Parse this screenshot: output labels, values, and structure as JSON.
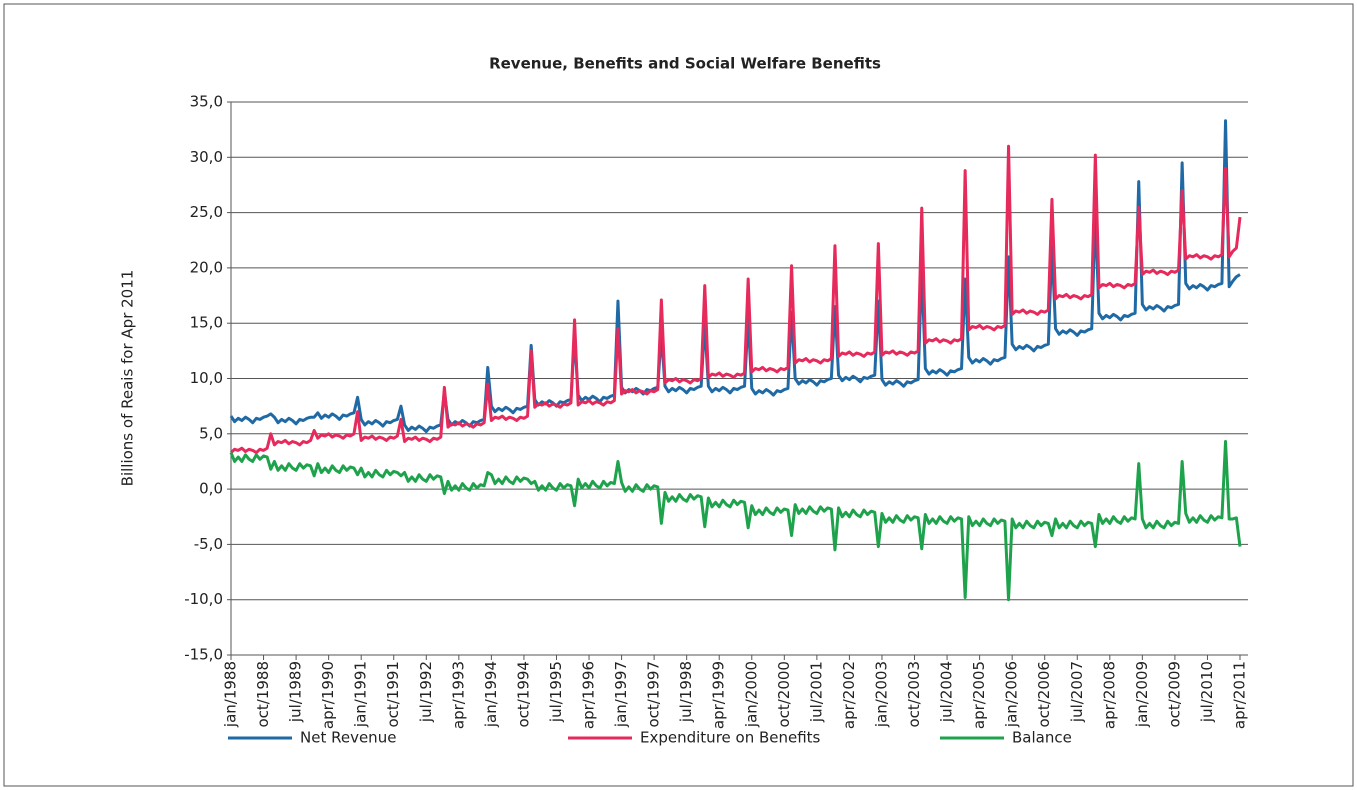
{
  "chart_data": {
    "type": "line",
    "title": "Revenue, Benefits and Social Welfare Benefits",
    "y_label": "Billions of Reais for Apr 2011",
    "ylim": [
      -15,
      35
    ],
    "yticks": [
      {
        "value": -15,
        "label": "-15,0"
      },
      {
        "value": -10,
        "label": "-10,0"
      },
      {
        "value": -5,
        "label": "-5,0"
      },
      {
        "value": 0,
        "label": "0,0"
      },
      {
        "value": 5,
        "label": "5,0"
      },
      {
        "value": 10,
        "label": "10,0"
      },
      {
        "value": 15,
        "label": "15,0"
      },
      {
        "value": 20,
        "label": "20,0"
      },
      {
        "value": 25,
        "label": "25,0"
      },
      {
        "value": 30,
        "label": "30,0"
      },
      {
        "value": 35,
        "label": "35,0"
      }
    ],
    "grid": true,
    "legend": "bottom",
    "categories": [
      "jan/1988",
      null,
      null,
      null,
      null,
      null,
      null,
      null,
      null,
      "oct/1988",
      null,
      null,
      null,
      null,
      null,
      null,
      null,
      null,
      "jul/1989",
      null,
      null,
      null,
      null,
      null,
      null,
      null,
      null,
      "apr/1990",
      null,
      null,
      null,
      null,
      null,
      null,
      null,
      null,
      "jan/1991",
      null,
      null,
      null,
      null,
      null,
      null,
      null,
      null,
      "oct/1991",
      null,
      null,
      null,
      null,
      null,
      null,
      null,
      null,
      "jul/1992",
      null,
      null,
      null,
      null,
      null,
      null,
      null,
      null,
      "apr/1993",
      null,
      null,
      null,
      null,
      null,
      null,
      null,
      null,
      "jan/1994",
      null,
      null,
      null,
      null,
      null,
      null,
      null,
      null,
      "oct/1994",
      null,
      null,
      null,
      null,
      null,
      null,
      null,
      null,
      "jul/1995",
      null,
      null,
      null,
      null,
      null,
      null,
      null,
      null,
      "apr/1996",
      null,
      null,
      null,
      null,
      null,
      null,
      null,
      null,
      "jan/1997",
      null,
      null,
      null,
      null,
      null,
      null,
      null,
      null,
      "oct/1997",
      null,
      null,
      null,
      null,
      null,
      null,
      null,
      null,
      "jul/1998",
      null,
      null,
      null,
      null,
      null,
      null,
      null,
      null,
      "apr/1999",
      null,
      null,
      null,
      null,
      null,
      null,
      null,
      null,
      "jan/2000",
      null,
      null,
      null,
      null,
      null,
      null,
      null,
      null,
      "oct/2000",
      null,
      null,
      null,
      null,
      null,
      null,
      null,
      null,
      "jul/2001",
      null,
      null,
      null,
      null,
      null,
      null,
      null,
      null,
      "apr/2002",
      null,
      null,
      null,
      null,
      null,
      null,
      null,
      null,
      "jan/2003",
      null,
      null,
      null,
      null,
      null,
      null,
      null,
      null,
      "oct/2003",
      null,
      null,
      null,
      null,
      null,
      null,
      null,
      null,
      "jul/2004",
      null,
      null,
      null,
      null,
      null,
      null,
      null,
      null,
      "apr/2005",
      null,
      null,
      null,
      null,
      null,
      null,
      null,
      null,
      "jan/2006",
      null,
      null,
      null,
      null,
      null,
      null,
      null,
      null,
      "oct/2006",
      null,
      null,
      null,
      null,
      null,
      null,
      null,
      null,
      "jul/2007",
      null,
      null,
      null,
      null,
      null,
      null,
      null,
      null,
      "apr/2008",
      null,
      null,
      null,
      null,
      null,
      null,
      null,
      null,
      "jan/2009",
      null,
      null,
      null,
      null,
      null,
      null,
      null,
      null,
      "oct/2009",
      null,
      null,
      null,
      null,
      null,
      null,
      null,
      null,
      "jul/2010",
      null,
      null,
      null,
      null,
      null,
      null,
      null,
      null,
      "apr/2011"
    ],
    "series": [
      {
        "name": "Net Revenue",
        "color": "#1f6aa5",
        "values": [
          6.6,
          6.1,
          6.4,
          6.2,
          6.5,
          6.3,
          6.0,
          6.4,
          6.3,
          6.5,
          6.6,
          6.8,
          6.5,
          6.0,
          6.3,
          6.1,
          6.4,
          6.2,
          5.9,
          6.3,
          6.2,
          6.4,
          6.5,
          6.5,
          6.9,
          6.4,
          6.7,
          6.5,
          6.8,
          6.6,
          6.3,
          6.7,
          6.6,
          6.8,
          6.9,
          8.3,
          6.3,
          5.8,
          6.1,
          5.9,
          6.2,
          6.0,
          5.7,
          6.1,
          6.0,
          6.2,
          6.3,
          7.5,
          5.8,
          5.3,
          5.6,
          5.4,
          5.7,
          5.5,
          5.2,
          5.6,
          5.5,
          5.7,
          5.8,
          8.8,
          6.3,
          5.8,
          6.1,
          5.9,
          6.2,
          6.0,
          5.7,
          6.1,
          6.0,
          6.2,
          6.3,
          11.0,
          7.5,
          7.0,
          7.3,
          7.1,
          7.4,
          7.2,
          6.9,
          7.3,
          7.2,
          7.4,
          7.5,
          13.0,
          8.1,
          7.6,
          7.9,
          7.7,
          8.0,
          7.8,
          7.5,
          7.9,
          7.8,
          8.0,
          8.1,
          13.8,
          8.5,
          8.0,
          8.3,
          8.1,
          8.4,
          8.2,
          7.9,
          8.3,
          8.2,
          8.4,
          8.5,
          17.0,
          9.2,
          8.7,
          9.0,
          8.8,
          9.1,
          8.9,
          8.6,
          9.0,
          8.9,
          9.1,
          9.2,
          14.0,
          9.3,
          8.8,
          9.1,
          8.9,
          9.2,
          9.0,
          8.7,
          9.1,
          9.0,
          9.2,
          9.3,
          15.0,
          9.3,
          8.8,
          9.1,
          8.9,
          9.2,
          9.0,
          8.7,
          9.1,
          9.0,
          9.2,
          9.3,
          15.5,
          9.1,
          8.6,
          8.9,
          8.7,
          9.0,
          8.8,
          8.5,
          8.9,
          8.8,
          9.0,
          9.1,
          16.0,
          10.0,
          9.5,
          9.8,
          9.6,
          9.9,
          9.7,
          9.4,
          9.8,
          9.7,
          9.9,
          10.0,
          16.5,
          10.3,
          9.8,
          10.1,
          9.9,
          10.2,
          10.0,
          9.7,
          10.1,
          10.0,
          10.2,
          10.3,
          17.0,
          9.9,
          9.4,
          9.7,
          9.5,
          9.8,
          9.6,
          9.3,
          9.7,
          9.6,
          9.8,
          9.9,
          20.0,
          10.9,
          10.4,
          10.7,
          10.5,
          10.8,
          10.6,
          10.3,
          10.7,
          10.6,
          10.8,
          10.9,
          19.0,
          11.9,
          11.4,
          11.7,
          11.5,
          11.8,
          11.6,
          11.3,
          11.7,
          11.6,
          11.8,
          11.9,
          21.0,
          13.1,
          12.6,
          12.9,
          12.7,
          13.0,
          12.8,
          12.5,
          12.9,
          12.8,
          13.0,
          13.1,
          22.0,
          14.5,
          14.0,
          14.3,
          14.1,
          14.4,
          14.2,
          13.9,
          14.3,
          14.2,
          14.4,
          14.5,
          25.0,
          15.9,
          15.4,
          15.7,
          15.5,
          15.8,
          15.6,
          15.3,
          15.7,
          15.6,
          15.8,
          15.9,
          27.8,
          16.7,
          16.2,
          16.5,
          16.3,
          16.6,
          16.4,
          16.1,
          16.5,
          16.4,
          16.6,
          16.7,
          29.5,
          18.6,
          18.1,
          18.4,
          18.2,
          18.5,
          18.3,
          18.0,
          18.4,
          18.3,
          18.5,
          18.6,
          33.3,
          18.3,
          18.8,
          19.2,
          19.4
        ]
      },
      {
        "name": "Expenditure on Benefits",
        "color": "#e62a5c",
        "values": [
          3.3,
          3.6,
          3.5,
          3.7,
          3.4,
          3.6,
          3.5,
          3.3,
          3.6,
          3.5,
          3.7,
          5.0,
          4.0,
          4.3,
          4.2,
          4.4,
          4.1,
          4.3,
          4.2,
          4.0,
          4.3,
          4.2,
          4.4,
          5.3,
          4.6,
          4.9,
          4.8,
          5.0,
          4.7,
          4.9,
          4.8,
          4.6,
          4.9,
          4.8,
          5.0,
          7.0,
          4.4,
          4.7,
          4.6,
          4.8,
          4.5,
          4.7,
          4.6,
          4.4,
          4.7,
          4.6,
          4.8,
          6.3,
          4.3,
          4.6,
          4.5,
          4.7,
          4.4,
          4.6,
          4.5,
          4.3,
          4.6,
          4.5,
          4.7,
          9.2,
          5.6,
          5.9,
          5.8,
          6.0,
          5.7,
          5.9,
          5.8,
          5.6,
          5.9,
          5.8,
          6.0,
          9.5,
          6.2,
          6.5,
          6.4,
          6.6,
          6.3,
          6.5,
          6.4,
          6.2,
          6.5,
          6.4,
          6.6,
          12.5,
          7.4,
          7.7,
          7.6,
          7.8,
          7.5,
          7.7,
          7.6,
          7.4,
          7.7,
          7.6,
          7.8,
          15.3,
          7.6,
          7.9,
          7.8,
          8.0,
          7.7,
          7.9,
          7.8,
          7.6,
          7.9,
          7.8,
          8.0,
          14.5,
          8.6,
          8.9,
          8.8,
          9.0,
          8.7,
          8.9,
          8.8,
          8.6,
          8.9,
          8.8,
          9.0,
          17.1,
          9.6,
          9.9,
          9.8,
          10.0,
          9.7,
          9.9,
          9.8,
          9.6,
          9.9,
          9.8,
          10.0,
          18.4,
          10.1,
          10.4,
          10.3,
          10.5,
          10.2,
          10.4,
          10.3,
          10.1,
          10.4,
          10.3,
          10.5,
          19.0,
          10.6,
          10.9,
          10.8,
          11.0,
          10.7,
          10.9,
          10.8,
          10.6,
          10.9,
          10.8,
          11.0,
          20.2,
          11.4,
          11.7,
          11.6,
          11.8,
          11.5,
          11.7,
          11.6,
          11.4,
          11.7,
          11.6,
          11.8,
          22.0,
          12.0,
          12.3,
          12.2,
          12.4,
          12.1,
          12.3,
          12.2,
          12.0,
          12.3,
          12.2,
          12.4,
          22.2,
          12.1,
          12.4,
          12.3,
          12.5,
          12.2,
          12.4,
          12.3,
          12.1,
          12.4,
          12.3,
          12.5,
          25.4,
          13.2,
          13.5,
          13.4,
          13.6,
          13.3,
          13.5,
          13.4,
          13.2,
          13.5,
          13.4,
          13.6,
          28.8,
          14.4,
          14.7,
          14.6,
          14.8,
          14.5,
          14.7,
          14.6,
          14.4,
          14.7,
          14.6,
          14.8,
          31.0,
          15.8,
          16.1,
          16.0,
          16.2,
          15.9,
          16.1,
          16.0,
          15.8,
          16.1,
          16.0,
          16.2,
          26.2,
          17.2,
          17.5,
          17.4,
          17.6,
          17.3,
          17.5,
          17.4,
          17.2,
          17.5,
          17.4,
          17.6,
          30.2,
          18.2,
          18.5,
          18.4,
          18.6,
          18.3,
          18.5,
          18.4,
          18.2,
          18.5,
          18.4,
          18.6,
          25.5,
          19.4,
          19.7,
          19.6,
          19.8,
          19.5,
          19.7,
          19.6,
          19.4,
          19.7,
          19.6,
          19.8,
          27.0,
          20.8,
          21.1,
          21.0,
          21.2,
          20.9,
          21.1,
          21.0,
          20.8,
          21.1,
          21.0,
          21.2,
          29.0,
          21.0,
          21.5,
          21.8,
          24.6
        ]
      },
      {
        "name": "Balance",
        "color": "#1ea34c",
        "values": [
          3.3,
          2.5,
          2.9,
          2.5,
          3.1,
          2.7,
          2.5,
          3.1,
          2.7,
          3.0,
          2.9,
          1.8,
          2.5,
          1.7,
          2.1,
          1.7,
          2.3,
          1.9,
          1.7,
          2.3,
          1.9,
          2.2,
          2.1,
          1.2,
          2.3,
          1.5,
          1.9,
          1.5,
          2.1,
          1.7,
          1.5,
          2.1,
          1.7,
          2.0,
          1.9,
          1.3,
          1.9,
          1.1,
          1.5,
          1.1,
          1.7,
          1.3,
          1.1,
          1.7,
          1.3,
          1.6,
          1.5,
          1.2,
          1.5,
          0.7,
          1.1,
          0.7,
          1.3,
          0.9,
          0.7,
          1.3,
          0.9,
          1.2,
          1.1,
          -0.4,
          0.7,
          -0.1,
          0.3,
          -0.1,
          0.5,
          0.1,
          -0.1,
          0.5,
          0.1,
          0.4,
          0.3,
          1.5,
          1.3,
          0.5,
          0.9,
          0.5,
          1.1,
          0.7,
          0.5,
          1.1,
          0.7,
          1.0,
          0.9,
          0.5,
          0.7,
          -0.1,
          0.3,
          -0.1,
          0.5,
          0.1,
          -0.1,
          0.5,
          0.1,
          0.4,
          0.3,
          -1.5,
          0.9,
          0.1,
          0.5,
          0.1,
          0.7,
          0.3,
          0.1,
          0.7,
          0.3,
          0.6,
          0.5,
          2.5,
          0.6,
          -0.2,
          0.2,
          -0.2,
          0.4,
          0.0,
          -0.2,
          0.4,
          0.0,
          0.3,
          0.2,
          -3.1,
          -0.3,
          -1.1,
          -0.7,
          -1.1,
          -0.5,
          -0.9,
          -1.1,
          -0.5,
          -0.9,
          -0.6,
          -0.7,
          -3.4,
          -0.8,
          -1.6,
          -1.2,
          -1.6,
          -1.0,
          -1.4,
          -1.6,
          -1.0,
          -1.4,
          -1.1,
          -1.2,
          -3.5,
          -1.5,
          -2.3,
          -1.9,
          -2.3,
          -1.7,
          -2.1,
          -2.3,
          -1.7,
          -2.1,
          -1.8,
          -1.9,
          -4.2,
          -1.4,
          -2.2,
          -1.8,
          -2.2,
          -1.6,
          -2.0,
          -2.2,
          -1.6,
          -2.0,
          -1.7,
          -1.8,
          -5.5,
          -1.7,
          -2.5,
          -2.1,
          -2.5,
          -1.9,
          -2.3,
          -2.5,
          -1.9,
          -2.3,
          -2.0,
          -2.1,
          -5.2,
          -2.2,
          -3.0,
          -2.6,
          -3.0,
          -2.4,
          -2.8,
          -3.0,
          -2.4,
          -2.8,
          -2.5,
          -2.6,
          -5.4,
          -2.3,
          -3.1,
          -2.7,
          -3.1,
          -2.5,
          -2.9,
          -3.1,
          -2.5,
          -2.9,
          -2.6,
          -2.7,
          -9.8,
          -2.5,
          -3.3,
          -2.9,
          -3.3,
          -2.7,
          -3.1,
          -3.3,
          -2.7,
          -3.1,
          -2.8,
          -2.9,
          -10.0,
          -2.7,
          -3.5,
          -3.1,
          -3.5,
          -2.9,
          -3.3,
          -3.5,
          -2.9,
          -3.3,
          -3.0,
          -3.1,
          -4.2,
          -2.7,
          -3.5,
          -3.1,
          -3.5,
          -2.9,
          -3.3,
          -3.5,
          -2.9,
          -3.3,
          -3.0,
          -3.1,
          -5.2,
          -2.3,
          -3.1,
          -2.7,
          -3.1,
          -2.5,
          -2.9,
          -3.1,
          -2.5,
          -2.9,
          -2.6,
          -2.7,
          2.3,
          -2.7,
          -3.5,
          -3.1,
          -3.5,
          -2.9,
          -3.3,
          -3.5,
          -2.9,
          -3.3,
          -3.0,
          -3.1,
          2.5,
          -2.2,
          -3.0,
          -2.6,
          -3.0,
          -2.4,
          -2.8,
          -3.0,
          -2.4,
          -2.8,
          -2.5,
          -2.6,
          4.3,
          -2.7,
          -2.7,
          -2.6,
          -5.2
        ]
      }
    ]
  }
}
